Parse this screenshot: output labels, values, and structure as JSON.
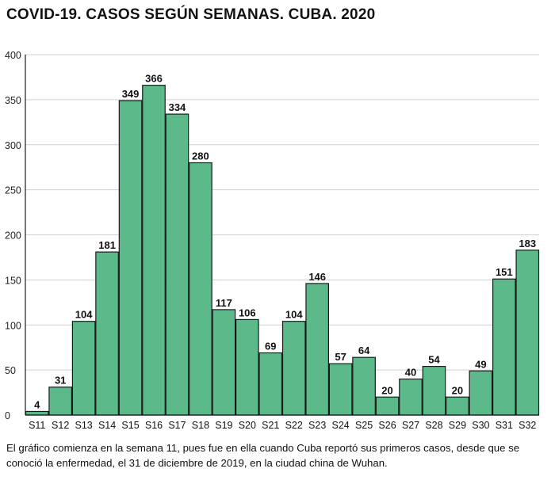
{
  "header": {
    "title": "COVID-19. CASOS SEGÚN SEMANAS. CUBA. 2020"
  },
  "caption": {
    "text": "El gráfico comienza en la semana 11, pues fue en ella cuando Cuba reportó sus primeros casos, desde que se conoció la enfermedad, el 31 de diciembre de 2019, en la ciudad china de Wuhan."
  },
  "chart_data": {
    "type": "bar",
    "title": "COVID-19. CASOS SEGÚN SEMANAS. CUBA. 2020",
    "xlabel": "",
    "ylabel": "",
    "categories": [
      "S11",
      "S12",
      "S13",
      "S14",
      "S15",
      "S16",
      "S17",
      "S18",
      "S19",
      "S20",
      "S21",
      "S22",
      "S23",
      "S24",
      "S25",
      "S26",
      "S27",
      "S28",
      "S29",
      "S30",
      "S31",
      "S32"
    ],
    "values": [
      4,
      31,
      104,
      181,
      349,
      366,
      334,
      280,
      117,
      106,
      69,
      104,
      146,
      57,
      64,
      20,
      40,
      54,
      20,
      49,
      151,
      183
    ],
    "ylim": [
      0,
      400
    ],
    "yticks": [
      0,
      50,
      100,
      150,
      200,
      250,
      300,
      350,
      400
    ],
    "grid": true,
    "legend": "none",
    "colors": {
      "bar": "#5cb98a",
      "bar_stroke": "#1a1a1a",
      "grid": "#cfcfcf"
    }
  }
}
